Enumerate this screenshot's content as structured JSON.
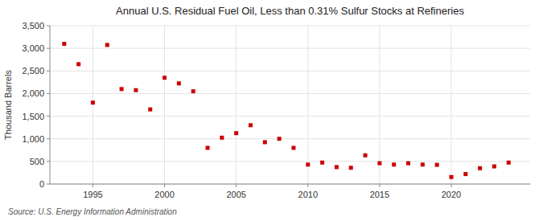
{
  "chart_data": {
    "type": "scatter",
    "title": "Annual U.S. Residual Fuel Oil, Less than 0.31% Sulfur Stocks at Refineries",
    "ylabel": "Thousand Barrels",
    "annotations": [
      "Source: U.S. Energy Information Administration"
    ],
    "x": [
      1993,
      1994,
      1995,
      1996,
      1997,
      1998,
      1999,
      2000,
      2001,
      2002,
      2003,
      2004,
      2005,
      2006,
      2007,
      2008,
      2009,
      2010,
      2011,
      2012,
      2013,
      2014,
      2015,
      2016,
      2017,
      2018,
      2019,
      2020,
      2021,
      2022,
      2023,
      2024
    ],
    "values": [
      3100,
      2650,
      1800,
      3075,
      2100,
      2075,
      1650,
      2350,
      2225,
      2050,
      800,
      1025,
      1125,
      1300,
      925,
      1000,
      800,
      430,
      475,
      375,
      360,
      635,
      460,
      430,
      460,
      430,
      425,
      155,
      220,
      350,
      390,
      475
    ],
    "color": "#cc0000",
    "marker": "square",
    "xlim": [
      1992,
      2025.5
    ],
    "xticks": [
      1995,
      2000,
      2005,
      2010,
      2015,
      2020
    ],
    "ylim": [
      0,
      3500
    ],
    "yticks": [
      0,
      500,
      {
        "value": 1000,
        "label": "1,000"
      },
      {
        "value": 1500,
        "label": "1,500"
      },
      {
        "value": 2000,
        "label": "2,000"
      },
      {
        "value": 2500,
        "label": "2,500"
      },
      {
        "value": 3000,
        "label": "3,000"
      },
      {
        "value": 3500,
        "label": "3,500"
      }
    ],
    "grid": true
  }
}
